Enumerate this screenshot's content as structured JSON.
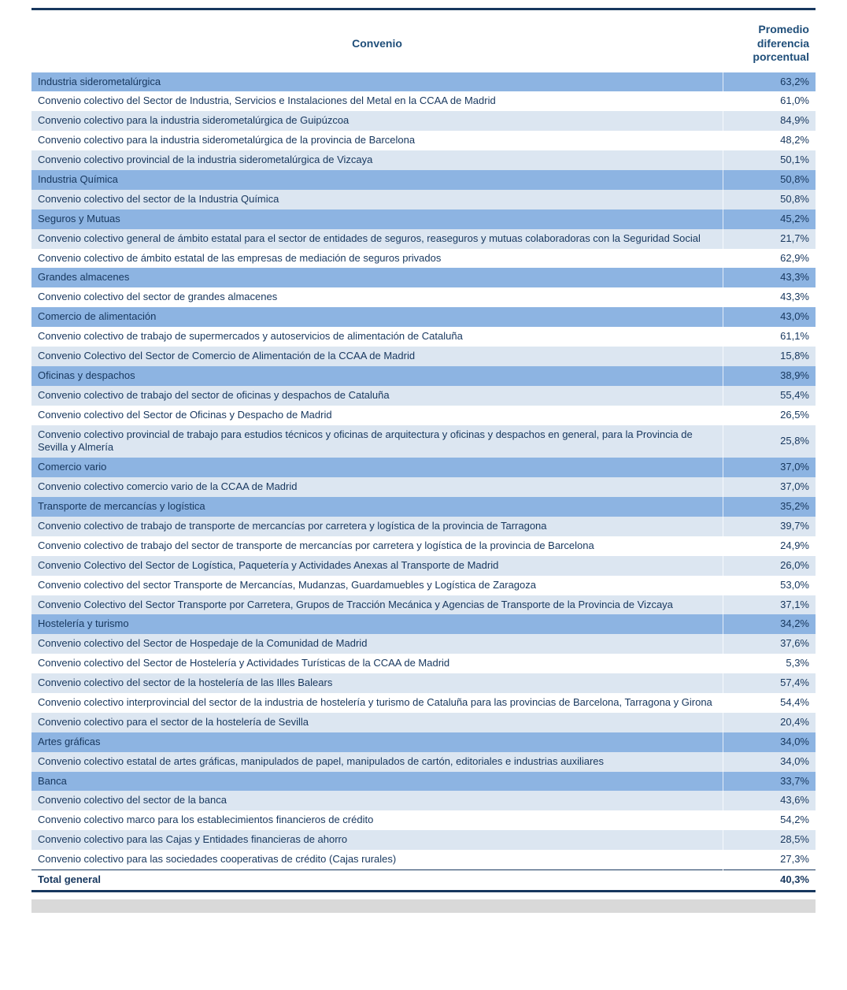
{
  "colors": {
    "border_rule": "#17375E",
    "header_text": "#1F4E79",
    "category_bg": "#8DB4E2",
    "light_bg": "#DCE6F1",
    "white_bg": "#FFFFFF",
    "row_text": "#17375E",
    "footer_strip": "#D9D9D9"
  },
  "chart_data": {
    "type": "table",
    "title": "",
    "columns": [
      "Convenio",
      "Promedio diferencia porcentual"
    ],
    "rows": [
      {
        "convenio": "Industria siderometalúrgica",
        "value": "63,2%",
        "row_type": "category"
      },
      {
        "convenio": "Convenio colectivo del Sector de Industria, Servicios e Instalaciones del Metal en la CCAA de Madrid",
        "value": "61,0%",
        "row_type": "white"
      },
      {
        "convenio": "Convenio colectivo para la industria siderometalúrgica de Guipúzcoa",
        "value": "84,9%",
        "row_type": "light"
      },
      {
        "convenio": "Convenio colectivo para la industria siderometalúrgica de la provincia de Barcelona",
        "value": "48,2%",
        "row_type": "white"
      },
      {
        "convenio": "Convenio colectivo provincial de la industria siderometalúrgica de Vizcaya",
        "value": "50,1%",
        "row_type": "light"
      },
      {
        "convenio": "Industria Química",
        "value": "50,8%",
        "row_type": "category"
      },
      {
        "convenio": "Convenio colectivo del sector de la Industria Química",
        "value": "50,8%",
        "row_type": "light"
      },
      {
        "convenio": "Seguros y Mutuas",
        "value": "45,2%",
        "row_type": "category"
      },
      {
        "convenio": "Convenio colectivo general de ámbito estatal para el sector de entidades de seguros, reaseguros y mutuas colaboradoras con la Seguridad Social",
        "value": "21,7%",
        "row_type": "light"
      },
      {
        "convenio": "Convenio colectivo de ámbito estatal de las empresas de mediación de seguros privados",
        "value": "62,9%",
        "row_type": "white"
      },
      {
        "convenio": "Grandes almacenes",
        "value": "43,3%",
        "row_type": "category"
      },
      {
        "convenio": "Convenio colectivo del sector de grandes almacenes",
        "value": "43,3%",
        "row_type": "white"
      },
      {
        "convenio": "Comercio de alimentación",
        "value": "43,0%",
        "row_type": "category"
      },
      {
        "convenio": "Convenio colectivo de trabajo de supermercados y autoservicios de alimentación de Cataluña",
        "value": "61,1%",
        "row_type": "white"
      },
      {
        "convenio": "Convenio Colectivo del Sector de Comercio de Alimentación de la CCAA de Madrid",
        "value": "15,8%",
        "row_type": "light"
      },
      {
        "convenio": "Oficinas y despachos",
        "value": "38,9%",
        "row_type": "category"
      },
      {
        "convenio": "Convenio colectivo de trabajo del sector de oficinas y despachos de Cataluña",
        "value": "55,4%",
        "row_type": "light"
      },
      {
        "convenio": "Convenio colectivo del Sector de Oficinas y Despacho de Madrid",
        "value": "26,5%",
        "row_type": "white"
      },
      {
        "convenio": "Convenio colectivo provincial de trabajo para estudios técnicos y oficinas de arquitectura y oficinas y despachos en general, para la Provincia de Sevilla y Almería",
        "value": "25,8%",
        "row_type": "light"
      },
      {
        "convenio": "Comercio vario",
        "value": "37,0%",
        "row_type": "category"
      },
      {
        "convenio": "Convenio colectivo comercio vario de la CCAA de Madrid",
        "value": "37,0%",
        "row_type": "light"
      },
      {
        "convenio": "Transporte de mercancías y logística",
        "value": "35,2%",
        "row_type": "category"
      },
      {
        "convenio": "Convenio colectivo de trabajo de transporte de mercancías por carretera y logística de la provincia de Tarragona",
        "value": "39,7%",
        "row_type": "light"
      },
      {
        "convenio": "Convenio colectivo de trabajo del sector de transporte de mercancías por carretera y logística de la provincia de Barcelona",
        "value": "24,9%",
        "row_type": "white"
      },
      {
        "convenio": "Convenio Colectivo del Sector de Logística, Paquetería y Actividades Anexas al Transporte de Madrid",
        "value": "26,0%",
        "row_type": "light"
      },
      {
        "convenio": "Convenio colectivo del sector Transporte de Mercancías, Mudanzas, Guardamuebles y Logística de Zaragoza",
        "value": "53,0%",
        "row_type": "white"
      },
      {
        "convenio": "Convenio Colectivo del Sector Transporte por Carretera, Grupos de Tracción Mecánica y Agencias de Transporte de la Provincia de Vizcaya",
        "value": "37,1%",
        "row_type": "light"
      },
      {
        "convenio": "Hostelería y turismo",
        "value": "34,2%",
        "row_type": "category"
      },
      {
        "convenio": "Convenio colectivo del Sector de Hospedaje de la Comunidad de Madrid",
        "value": "37,6%",
        "row_type": "light"
      },
      {
        "convenio": "Convenio colectivo del Sector de Hostelería y Actividades Turísticas de la CCAA de Madrid",
        "value": "5,3%",
        "row_type": "white"
      },
      {
        "convenio": "Convenio colectivo del sector de la hostelería de las Illes Balears",
        "value": "57,4%",
        "row_type": "light"
      },
      {
        "convenio": "Convenio colectivo interprovincial del sector de la industria de hostelería y turismo de Cataluña para las provincias de Barcelona, Tarragona y Girona",
        "value": "54,4%",
        "row_type": "white"
      },
      {
        "convenio": "Convenio colectivo para el sector de la hostelería de Sevilla",
        "value": "20,4%",
        "row_type": "light"
      },
      {
        "convenio": "Artes gráficas",
        "value": "34,0%",
        "row_type": "category"
      },
      {
        "convenio": "Convenio colectivo estatal de artes gráficas, manipulados de papel, manipulados de cartón, editoriales e industrias auxiliares",
        "value": "34,0%",
        "row_type": "light"
      },
      {
        "convenio": "Banca",
        "value": "33,7%",
        "row_type": "category"
      },
      {
        "convenio": "Convenio colectivo del sector de la banca",
        "value": "43,6%",
        "row_type": "light"
      },
      {
        "convenio": "Convenio colectivo marco para los establecimientos financieros de crédito",
        "value": "54,2%",
        "row_type": "white"
      },
      {
        "convenio": "Convenio colectivo para las Cajas y Entidades financieras de ahorro",
        "value": "28,5%",
        "row_type": "light"
      },
      {
        "convenio": "Convenio colectivo para las sociedades cooperativas de crédito (Cajas rurales)",
        "value": "27,3%",
        "row_type": "white"
      },
      {
        "convenio": "Total general",
        "value": "40,3%",
        "row_type": "total"
      }
    ]
  }
}
